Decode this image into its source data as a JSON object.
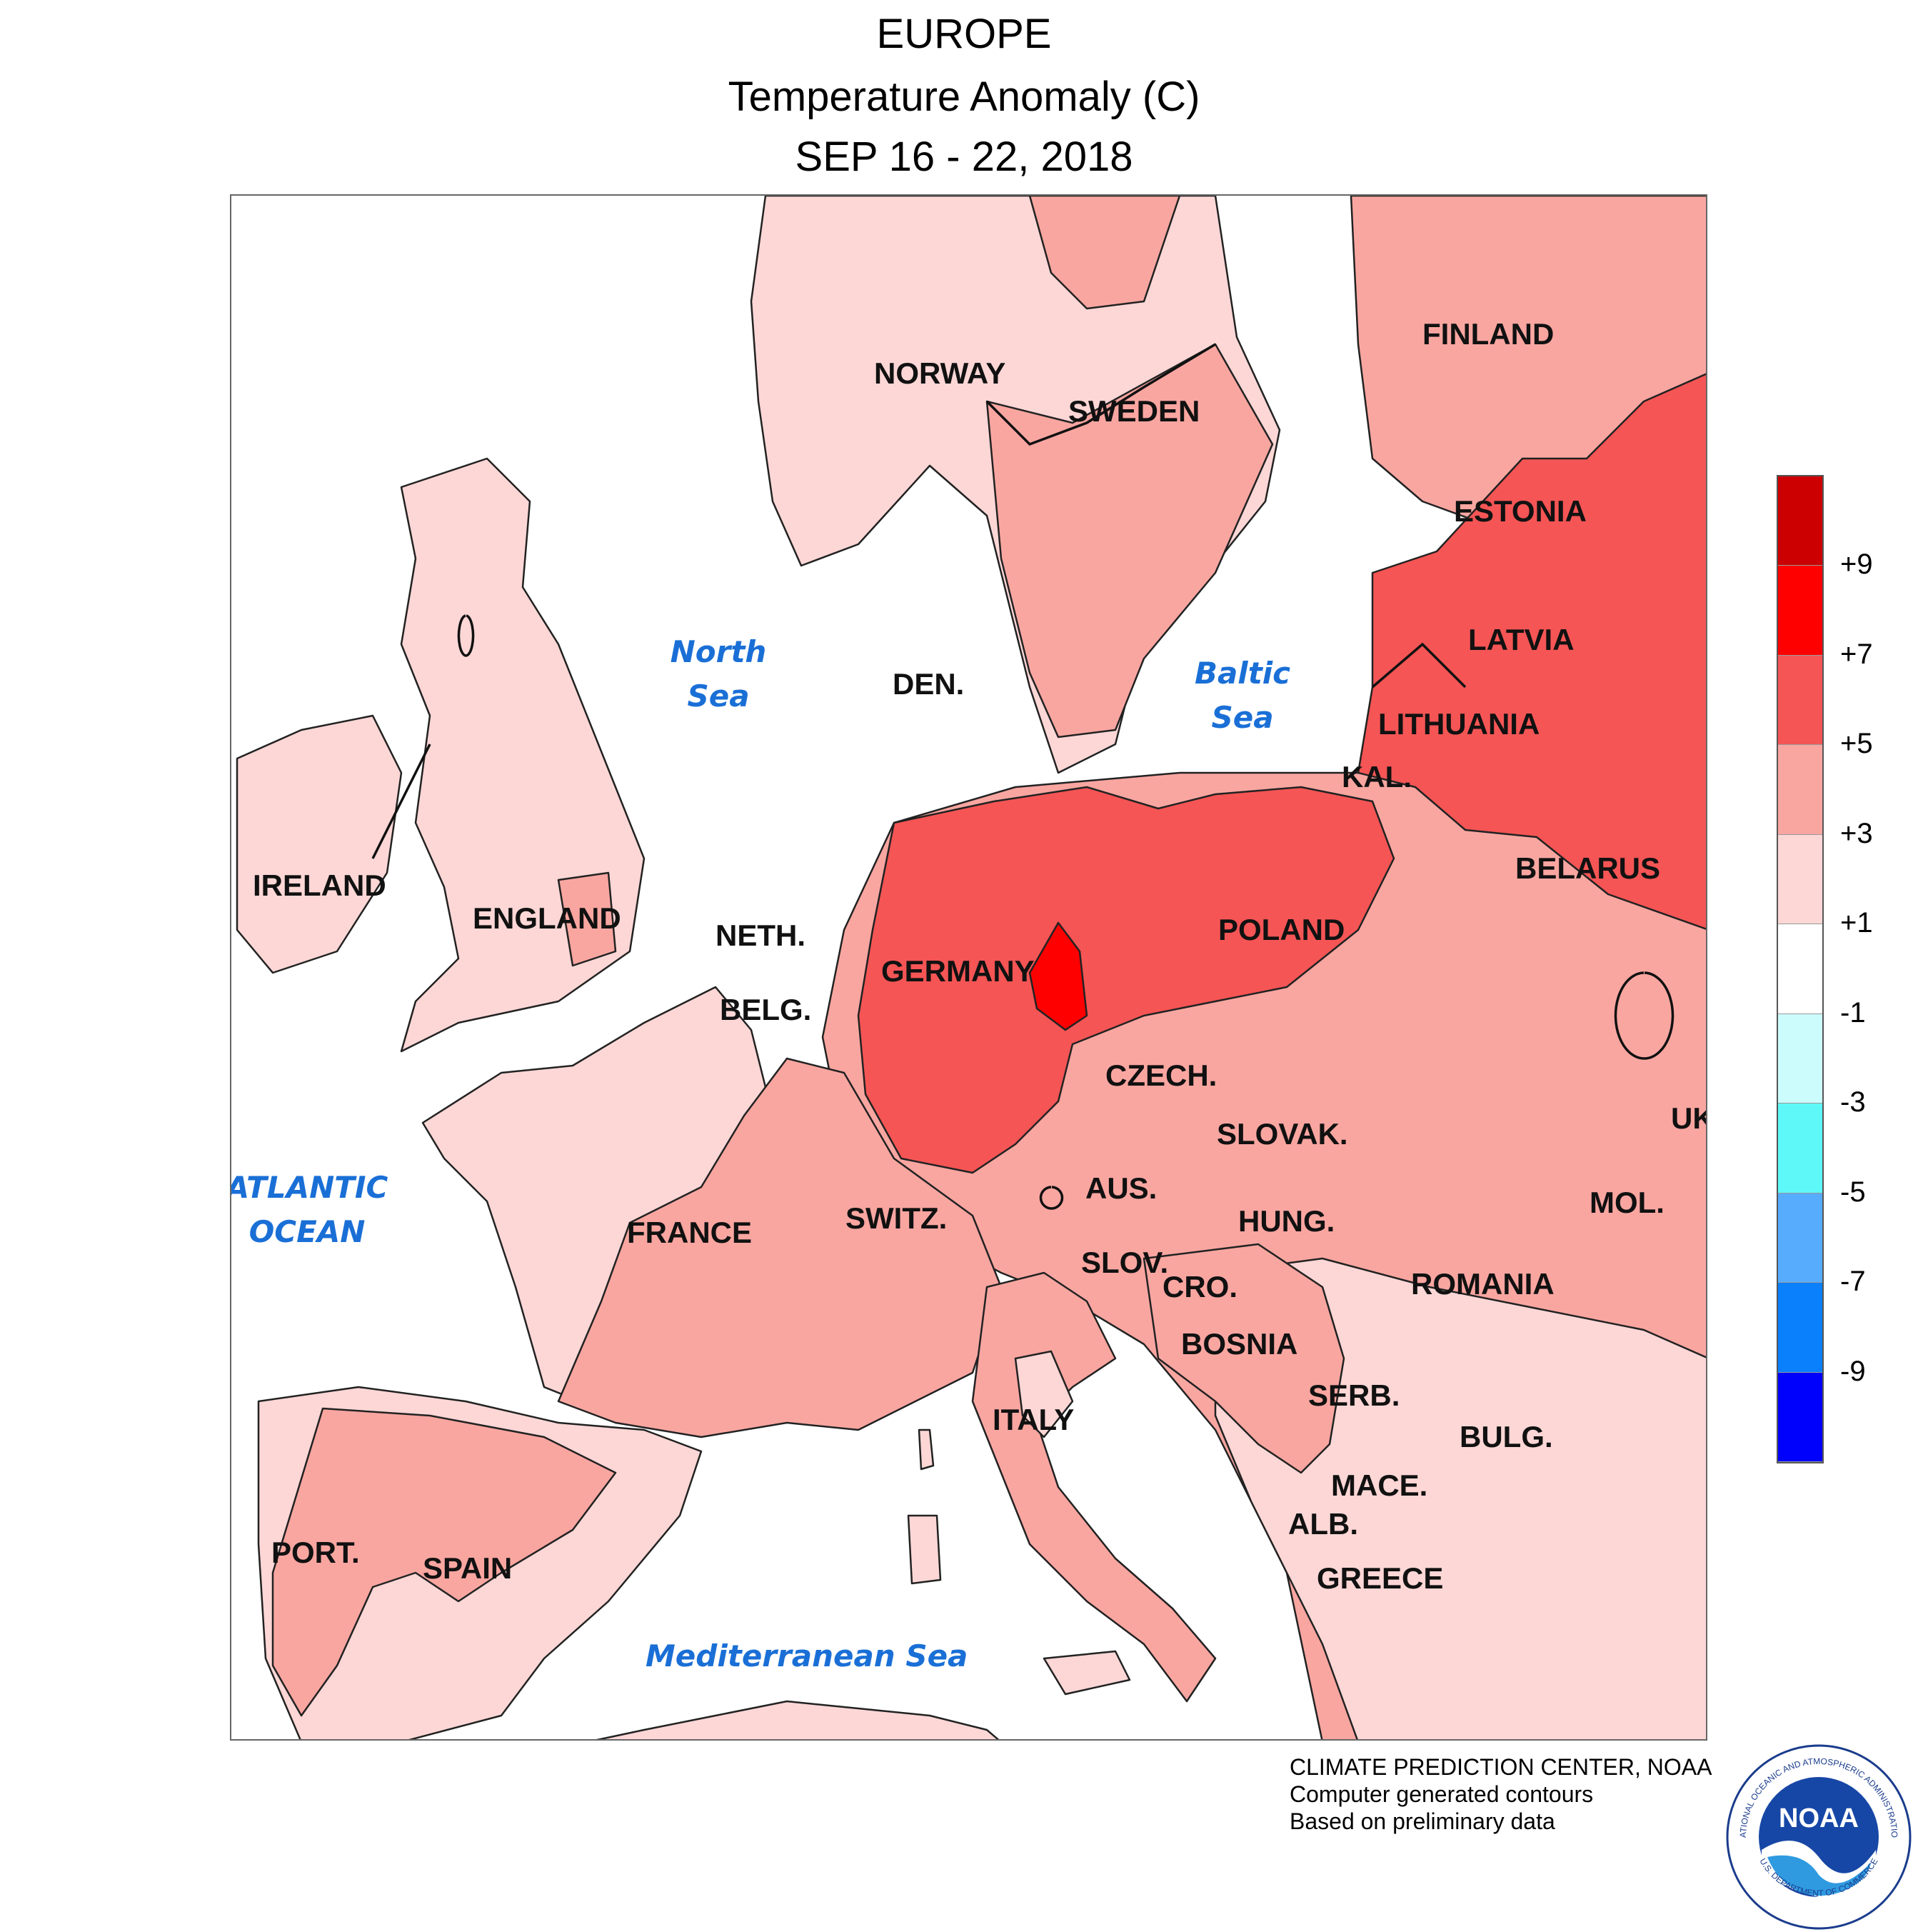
{
  "header": {
    "title": "EUROPE",
    "subtitle": "Temperature Anomaly (C)",
    "period": "SEP 16 - 22, 2018"
  },
  "countries": [
    {
      "key": "finland",
      "label": "FINLAND"
    },
    {
      "key": "norway",
      "label": "NORWAY"
    },
    {
      "key": "sweden",
      "label": "SWEDEN"
    },
    {
      "key": "estonia",
      "label": "ESTONIA"
    },
    {
      "key": "latvia",
      "label": "LATVIA"
    },
    {
      "key": "lithuania",
      "label": "LITHUANIA"
    },
    {
      "key": "den",
      "label": "DEN."
    },
    {
      "key": "kal",
      "label": "KAL."
    },
    {
      "key": "belarus",
      "label": "BELARUS"
    },
    {
      "key": "ireland",
      "label": "IRELAND"
    },
    {
      "key": "england",
      "label": "ENGLAND"
    },
    {
      "key": "neth",
      "label": "NETH."
    },
    {
      "key": "germany",
      "label": "GERMANY"
    },
    {
      "key": "poland",
      "label": "POLAND"
    },
    {
      "key": "belg",
      "label": "BELG."
    },
    {
      "key": "czech",
      "label": "CZECH."
    },
    {
      "key": "slovak",
      "label": "SLOVAK."
    },
    {
      "key": "uk",
      "label": "UK"
    },
    {
      "key": "aus",
      "label": "AUS."
    },
    {
      "key": "switz",
      "label": "SWITZ."
    },
    {
      "key": "hung",
      "label": "HUNG."
    },
    {
      "key": "mol",
      "label": "MOL."
    },
    {
      "key": "france",
      "label": "FRANCE"
    },
    {
      "key": "slov",
      "label": "SLOV."
    },
    {
      "key": "cro",
      "label": "CRO."
    },
    {
      "key": "romania",
      "label": "ROMANIA"
    },
    {
      "key": "bosnia",
      "label": "BOSNIA"
    },
    {
      "key": "serb",
      "label": "SERB."
    },
    {
      "key": "italy",
      "label": "ITALY"
    },
    {
      "key": "bulg",
      "label": "BULG."
    },
    {
      "key": "mace",
      "label": "MACE."
    },
    {
      "key": "alb",
      "label": "ALB."
    },
    {
      "key": "port",
      "label": "PORT."
    },
    {
      "key": "spain",
      "label": "SPAIN"
    },
    {
      "key": "greece",
      "label": "GREECE"
    }
  ],
  "water_bodies": {
    "north_sea": {
      "line1": "North",
      "line2": "Sea"
    },
    "baltic_sea": {
      "line1": "Baltic",
      "line2": "Sea"
    },
    "atlantic": {
      "line1": "ATLANTIC",
      "line2": "OCEAN"
    },
    "mediterranean": {
      "line1": "Mediterranean Sea",
      "line2": ""
    }
  },
  "legend": {
    "swatch_colors": [
      "#cc0000",
      "#ff0000",
      "#f55555",
      "#f9a6a1",
      "#fcd7d6",
      "#ffffff",
      "#ccfcfc",
      "#5ff8f8",
      "#57acfd",
      "#0a80fd",
      "#0000fd"
    ],
    "tick_labels": [
      "+9",
      "+7",
      "+5",
      "+3",
      "+1",
      "-1",
      "-3",
      "-5",
      "-7",
      "-9"
    ]
  },
  "credits": {
    "line1": "CLIMATE PREDICTION CENTER, NOAA",
    "line2": "Computer generated contours",
    "line3": "Based on preliminary data"
  },
  "logo": {
    "name": "NOAA",
    "ring_top": "NATIONAL OCEANIC AND ATMOSPHERIC ADMINISTRATION",
    "ring_bottom": "U.S. DEPARTMENT OF COMMERCE"
  },
  "colors": {
    "anomaly_1_3": "#fcd7d6",
    "anomaly_3_5": "#f9a6a1",
    "anomaly_5_7": "#f55555",
    "anomaly_7_9": "#ff0000",
    "water_label": "#1a6fd6"
  }
}
